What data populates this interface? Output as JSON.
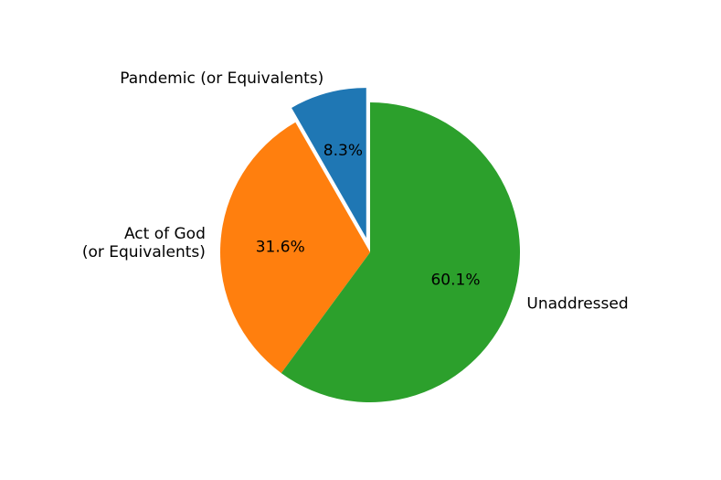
{
  "chart_data": {
    "type": "pie",
    "title": "",
    "labels": [
      "Pandemic (or Equivalents)",
      "Act of God\n(or Equivalents)",
      "Unaddressed"
    ],
    "values": [
      8.3,
      31.6,
      60.1
    ],
    "value_labels": [
      "8.3%",
      "31.6%",
      "60.1%"
    ],
    "colors": [
      "#1f77b4",
      "#ff7f0e",
      "#2ca02c"
    ],
    "exploded_slice": "Pandemic (or Equivalents)",
    "start": "top",
    "direction": "counterclockwise",
    "legend": "none"
  }
}
